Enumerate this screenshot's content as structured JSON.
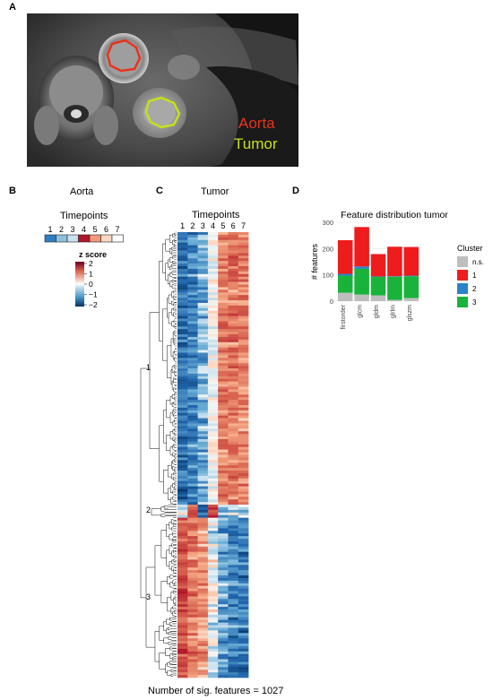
{
  "panels": {
    "a": {
      "letter": "A",
      "labels": {
        "aorta": "Aorta",
        "tumor": "Tumor"
      },
      "colors": {
        "aorta": "#e8321e",
        "tumor": "#c6e01a"
      }
    },
    "b": {
      "letter": "B",
      "title": "Aorta",
      "timepoints_title": "Timepoints",
      "timepoints": [
        "1",
        "2",
        "3",
        "4",
        "5",
        "6",
        "7"
      ],
      "timepoint_colors": [
        "#2e7fc0",
        "#8fc0de",
        "#c9dfee",
        "#b2172b",
        "#f0987a",
        "#fcd7c4",
        "#ffffff"
      ],
      "zscore_title": "z score",
      "zscore_ticks": [
        "2",
        "1",
        "0",
        "−1",
        "−2"
      ]
    },
    "c": {
      "letter": "C",
      "title": "Tumor",
      "timepoints_title": "Timepoints",
      "columns": [
        "1",
        "2",
        "3",
        "4",
        "5",
        "6",
        "7"
      ],
      "clusters": [
        "1",
        "2",
        "3"
      ],
      "footer": "Number of sig. features = 1027"
    },
    "d": {
      "letter": "D"
    }
  },
  "chart_data": {
    "type": "bar",
    "stacked": true,
    "title": "Feature distribution tumor",
    "ylabel": "# features",
    "xlabel": "",
    "categories": [
      "firstorder",
      "glcm",
      "gldm",
      "glrlm",
      "glszm"
    ],
    "ylim": [
      0,
      300
    ],
    "yticks": [
      "0",
      "100",
      "200",
      "300"
    ],
    "grid": true,
    "legend_title": "Cluster",
    "legend_position": "right",
    "series": [
      {
        "name": "n.s.",
        "color": "#bebebe",
        "values": [
          32,
          25,
          22,
          5,
          12
        ]
      },
      {
        "name": "3",
        "color": "#19b33b",
        "values": [
          65,
          98,
          70,
          88,
          83
        ]
      },
      {
        "name": "2",
        "color": "#2a82c8",
        "values": [
          7,
          9,
          2,
          2,
          2
        ]
      },
      {
        "name": "1",
        "color": "#ee1c1c",
        "values": [
          128,
          150,
          85,
          112,
          109
        ]
      }
    ]
  }
}
